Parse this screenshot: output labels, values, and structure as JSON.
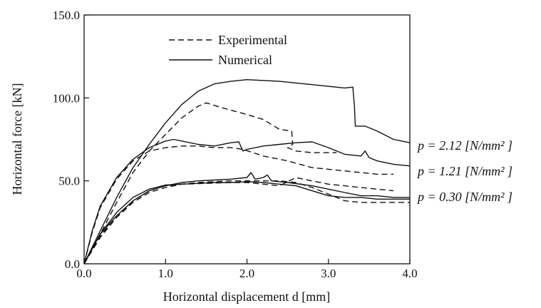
{
  "chart_data": {
    "type": "line",
    "title": "",
    "xlabel": "Horizontal displacement d [mm]",
    "ylabel": "Horizontal force [kN]",
    "xlim": [
      0,
      4
    ],
    "ylim": [
      0,
      150
    ],
    "x_ticks": [
      "0.0",
      "1.0",
      "2.0",
      "3.0",
      "4.0"
    ],
    "y_ticks": [
      "0.0",
      "50.0",
      "100.0",
      "150.0"
    ],
    "grid": false,
    "legend": {
      "position": "top-left",
      "entries": [
        {
          "label": "Experimental",
          "style": "dashed"
        },
        {
          "label": "Numerical",
          "style": "solid"
        }
      ]
    },
    "annotations": [
      {
        "text": "p = 2.12 [N/mm² ]",
        "near_series": "p = 2.12"
      },
      {
        "text": "p = 1.21 [N/mm² ]",
        "near_series": "p = 1.21"
      },
      {
        "text": "p = 0.30 [N/mm² ]",
        "near_series": "p = 0.30"
      }
    ],
    "series": [
      {
        "group": "p = 2.12",
        "kind": "Numerical",
        "style": "solid",
        "points": [
          [
            0,
            0
          ],
          [
            0.2,
            20
          ],
          [
            0.4,
            40
          ],
          [
            0.6,
            58
          ],
          [
            0.8,
            72
          ],
          [
            1.0,
            85
          ],
          [
            1.2,
            96
          ],
          [
            1.4,
            104
          ],
          [
            1.6,
            108.5
          ],
          [
            1.8,
            110
          ],
          [
            2.0,
            111
          ],
          [
            2.4,
            110
          ],
          [
            2.8,
            108
          ],
          [
            3.2,
            106
          ],
          [
            3.3,
            106.5
          ],
          [
            3.32,
            95
          ],
          [
            3.33,
            83
          ],
          [
            3.45,
            83
          ],
          [
            3.6,
            80
          ],
          [
            3.8,
            75
          ],
          [
            3.9,
            74
          ],
          [
            4.0,
            73
          ]
        ]
      },
      {
        "group": "p = 2.12",
        "kind": "Experimental",
        "style": "dashed",
        "points": [
          [
            0,
            0
          ],
          [
            0.2,
            18
          ],
          [
            0.4,
            37
          ],
          [
            0.6,
            55
          ],
          [
            0.8,
            68
          ],
          [
            1.0,
            78
          ],
          [
            1.2,
            88
          ],
          [
            1.4,
            95
          ],
          [
            1.5,
            97
          ],
          [
            1.7,
            94
          ],
          [
            2.0,
            90
          ],
          [
            2.2,
            87
          ],
          [
            2.4,
            81
          ],
          [
            2.55,
            80
          ],
          [
            2.56,
            72
          ],
          [
            2.5,
            70
          ],
          [
            2.6,
            68
          ],
          [
            2.8,
            67
          ],
          [
            3.0,
            67
          ],
          [
            3.1,
            67
          ]
        ]
      },
      {
        "group": "p = 1.21",
        "kind": "Numerical",
        "style": "solid",
        "points": [
          [
            0,
            0
          ],
          [
            0.1,
            20
          ],
          [
            0.2,
            35
          ],
          [
            0.4,
            52
          ],
          [
            0.6,
            63
          ],
          [
            0.8,
            70
          ],
          [
            1.0,
            74
          ],
          [
            1.1,
            75
          ],
          [
            1.2,
            74
          ],
          [
            1.4,
            72
          ],
          [
            1.6,
            71
          ],
          [
            1.8,
            73
          ],
          [
            1.9,
            73.5
          ],
          [
            1.95,
            68
          ],
          [
            2.0,
            69
          ],
          [
            2.2,
            71
          ],
          [
            2.4,
            72
          ],
          [
            2.6,
            73
          ],
          [
            2.8,
            73.5
          ],
          [
            3.0,
            70
          ],
          [
            3.2,
            66
          ],
          [
            3.4,
            65
          ],
          [
            3.45,
            68
          ],
          [
            3.5,
            64
          ],
          [
            3.6,
            62
          ],
          [
            3.8,
            60
          ],
          [
            4.0,
            59
          ]
        ]
      },
      {
        "group": "p = 1.21",
        "kind": "Experimental",
        "style": "dashed",
        "points": [
          [
            0,
            0
          ],
          [
            0.1,
            19
          ],
          [
            0.2,
            34
          ],
          [
            0.4,
            51
          ],
          [
            0.6,
            62
          ],
          [
            0.8,
            68
          ],
          [
            1.0,
            70
          ],
          [
            1.2,
            71
          ],
          [
            1.4,
            71
          ],
          [
            1.6,
            70
          ],
          [
            1.8,
            70
          ],
          [
            1.95,
            69
          ],
          [
            2.2,
            65
          ],
          [
            2.5,
            62
          ],
          [
            2.8,
            58
          ],
          [
            3.0,
            57
          ],
          [
            3.2,
            56
          ],
          [
            3.4,
            55
          ],
          [
            3.6,
            54
          ],
          [
            3.8,
            54
          ]
        ]
      },
      {
        "group": "p = 0.30",
        "kind": "Numerical",
        "style": "solid",
        "points": [
          [
            0,
            0
          ],
          [
            0.2,
            18
          ],
          [
            0.4,
            29
          ],
          [
            0.6,
            38
          ],
          [
            0.8,
            44
          ],
          [
            1.0,
            47
          ],
          [
            1.2,
            49
          ],
          [
            1.4,
            50
          ],
          [
            1.6,
            50.5
          ],
          [
            1.8,
            51
          ],
          [
            2.0,
            52
          ],
          [
            2.05,
            55
          ],
          [
            2.1,
            51
          ],
          [
            2.2,
            52
          ],
          [
            2.25,
            53.5
          ],
          [
            2.3,
            50
          ],
          [
            2.5,
            49
          ],
          [
            2.8,
            47
          ],
          [
            3.0,
            45
          ],
          [
            3.2,
            43
          ],
          [
            3.4,
            41
          ],
          [
            3.6,
            41
          ],
          [
            3.8,
            40
          ],
          [
            4.0,
            40
          ]
        ]
      },
      {
        "group": "p = 0.30",
        "kind": "Experimental",
        "style": "dashed",
        "points": [
          [
            0,
            0
          ],
          [
            0.2,
            17
          ],
          [
            0.4,
            28
          ],
          [
            0.6,
            37
          ],
          [
            0.8,
            43
          ],
          [
            1.0,
            46
          ],
          [
            1.2,
            48
          ],
          [
            1.4,
            49
          ],
          [
            1.6,
            49.5
          ],
          [
            1.8,
            50
          ],
          [
            2.0,
            50
          ],
          [
            2.2,
            50
          ],
          [
            2.4,
            50
          ],
          [
            2.6,
            49
          ],
          [
            2.8,
            46
          ],
          [
            3.0,
            42
          ],
          [
            3.2,
            38
          ],
          [
            3.4,
            37
          ],
          [
            3.6,
            37
          ],
          [
            3.8,
            37
          ],
          [
            4.0,
            37
          ]
        ]
      },
      {
        "group": "p = 0.30",
        "kind": "Numerical",
        "style": "solid",
        "points": [
          [
            0,
            0
          ],
          [
            0.2,
            18
          ],
          [
            0.4,
            31
          ],
          [
            0.6,
            40
          ],
          [
            0.8,
            45
          ],
          [
            1.0,
            47.5
          ],
          [
            1.2,
            48
          ],
          [
            1.4,
            48.5
          ],
          [
            1.6,
            49
          ],
          [
            1.8,
            49
          ],
          [
            2.0,
            49.5
          ],
          [
            2.2,
            49
          ],
          [
            2.4,
            48
          ],
          [
            2.6,
            47
          ],
          [
            2.8,
            44
          ],
          [
            3.0,
            41
          ],
          [
            3.2,
            40
          ],
          [
            3.4,
            40
          ],
          [
            3.6,
            39
          ],
          [
            3.8,
            39
          ],
          [
            4.0,
            39
          ]
        ]
      },
      {
        "group": "p = 0.30",
        "kind": "Experimental",
        "style": "dashed",
        "points": [
          [
            0,
            0
          ],
          [
            0.2,
            16
          ],
          [
            0.4,
            28
          ],
          [
            0.6,
            38
          ],
          [
            0.8,
            44
          ],
          [
            1.0,
            47
          ],
          [
            1.2,
            48
          ],
          [
            1.5,
            48.5
          ],
          [
            1.8,
            49
          ],
          [
            2.0,
            49
          ],
          [
            2.2,
            48
          ],
          [
            2.4,
            47
          ],
          [
            2.6,
            52
          ],
          [
            2.8,
            50
          ],
          [
            3.0,
            48
          ],
          [
            3.2,
            47
          ],
          [
            3.4,
            46
          ],
          [
            3.6,
            45
          ],
          [
            3.8,
            44
          ]
        ]
      }
    ]
  }
}
